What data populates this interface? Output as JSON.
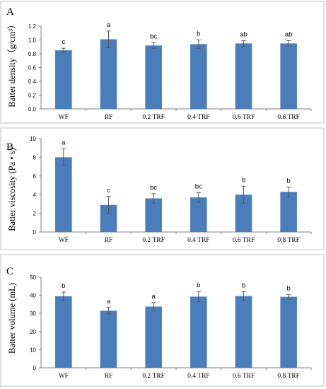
{
  "chart_data": [
    {
      "type": "bar",
      "panel_label": "A",
      "ylabel": "Batter density（g/cm³）",
      "categories": [
        "WF",
        "RF",
        "0.2 TRF",
        "0.4 TRF",
        "0.6 TRF",
        "0.8 TRF"
      ],
      "values": [
        0.85,
        1.01,
        0.92,
        0.94,
        0.95,
        0.95
      ],
      "errors": [
        0.03,
        0.12,
        0.04,
        0.06,
        0.04,
        0.04
      ],
      "significance": [
        "c",
        "a",
        "bc",
        "b",
        "ab",
        "ab"
      ],
      "ylim": [
        0,
        1.2
      ],
      "yticks": [
        "0.0",
        "0.2",
        "0.4",
        "0.6",
        "0.8",
        "1.0",
        "1.2"
      ],
      "grid": false,
      "legend": "none",
      "bar_color": "#4a7ebb"
    },
    {
      "type": "bar",
      "panel_label": "B",
      "ylabel": "Batter viscosity (Pa • s)",
      "categories": [
        "WF",
        "RF",
        "0.2 TRF",
        "0.4 TRF",
        "0.6 TRF",
        "0.8 TRF"
      ],
      "values": [
        8.0,
        2.9,
        3.6,
        3.7,
        4.0,
        4.3
      ],
      "errors": [
        0.9,
        0.9,
        0.5,
        0.5,
        0.9,
        0.5
      ],
      "significance": [
        "a",
        "c",
        "bc",
        "bc",
        "b",
        "b"
      ],
      "ylim": [
        0,
        10
      ],
      "yticks": [
        "0",
        "2",
        "4",
        "6",
        "8",
        "10"
      ],
      "grid": false,
      "legend": "none",
      "bar_color": "#4a7ebb"
    },
    {
      "type": "bar",
      "panel_label": "C",
      "ylabel": "Batter volume (mL)",
      "categories": [
        "WF",
        "RF",
        "0.2 TRF",
        "0.4 TRF",
        "0.6 TRF",
        "0.8 TRF"
      ],
      "values": [
        39.5,
        31.5,
        33.8,
        39.3,
        39.6,
        39.2
      ],
      "errors": [
        2.3,
        1.8,
        2.2,
        2.8,
        2.4,
        1.2
      ],
      "significance": [
        "b",
        "a",
        "a",
        "b",
        "b",
        "b"
      ],
      "ylim": [
        0,
        50
      ],
      "yticks": [
        "0",
        "10",
        "20",
        "30",
        "40",
        "50"
      ],
      "grid": false,
      "legend": "none",
      "bar_color": "#4a7ebb"
    }
  ]
}
